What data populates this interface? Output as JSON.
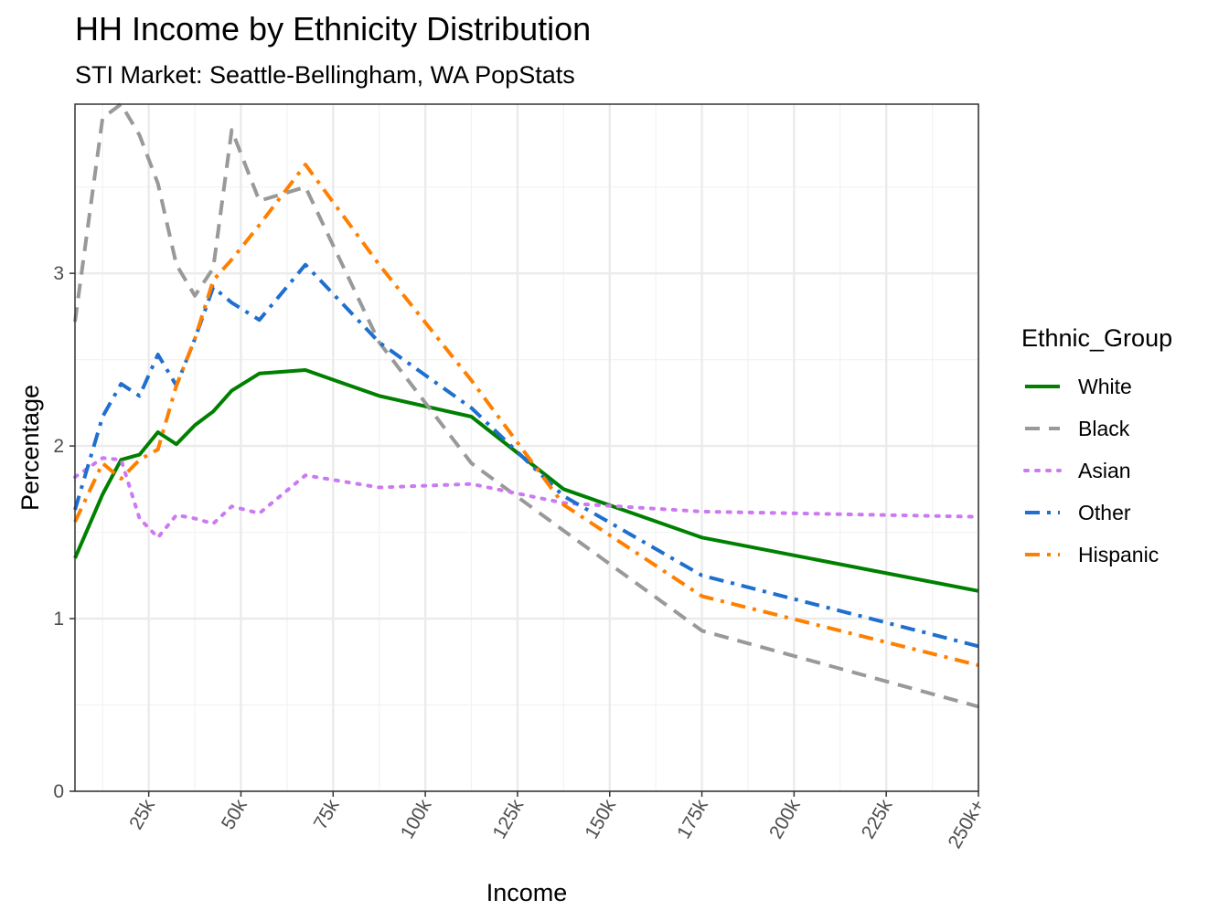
{
  "chart_data": {
    "type": "line",
    "title": "HH Income by Ethnicity Distribution",
    "subtitle": "STI Market: Seattle-Bellingham, WA PopStats",
    "xlabel": "Income",
    "ylabel": "Percentage",
    "xlim": [
      5,
      250
    ],
    "ylim": [
      0,
      3.98
    ],
    "x_ticks": [
      {
        "value": 25,
        "label": "25k"
      },
      {
        "value": 50,
        "label": "50k"
      },
      {
        "value": 75,
        "label": "75k"
      },
      {
        "value": 100,
        "label": "100k"
      },
      {
        "value": 125,
        "label": "125k"
      },
      {
        "value": 150,
        "label": "150k"
      },
      {
        "value": 175,
        "label": "175k"
      },
      {
        "value": 200,
        "label": "200k"
      },
      {
        "value": 225,
        "label": "225k"
      },
      {
        "value": 250,
        "label": "250k+"
      }
    ],
    "y_ticks": [
      {
        "value": 0,
        "label": "0"
      },
      {
        "value": 1,
        "label": "1"
      },
      {
        "value": 2,
        "label": "2"
      },
      {
        "value": 3,
        "label": "3"
      }
    ],
    "grid": true,
    "legend": {
      "title": "Ethnic_Group",
      "position": "right"
    },
    "x": [
      5,
      12.5,
      17.5,
      22.5,
      27.5,
      32.5,
      37.5,
      42.5,
      47.5,
      55,
      67.5,
      87.5,
      112.5,
      137.5,
      175,
      250
    ],
    "series": [
      {
        "name": "White",
        "color": "#008000",
        "dash": "solid",
        "values": [
          1.35,
          1.72,
          1.92,
          1.95,
          2.08,
          2.01,
          2.12,
          2.2,
          2.32,
          2.42,
          2.44,
          2.29,
          2.17,
          1.75,
          1.47,
          1.16
        ]
      },
      {
        "name": "Black",
        "color": "#999999",
        "dash": "dashed",
        "values": [
          2.72,
          3.9,
          3.98,
          3.8,
          3.52,
          3.05,
          2.87,
          3.03,
          3.83,
          3.42,
          3.5,
          2.6,
          1.9,
          1.51,
          0.93,
          0.49
        ]
      },
      {
        "name": "Asian",
        "color": "#cc79f2",
        "dash": "dotted",
        "values": [
          1.82,
          1.93,
          1.92,
          1.58,
          1.47,
          1.6,
          1.58,
          1.55,
          1.65,
          1.61,
          1.83,
          1.76,
          1.78,
          1.67,
          1.62,
          1.59
        ]
      },
      {
        "name": "Other",
        "color": "#1f6fcf",
        "dash": "dotdash",
        "values": [
          1.63,
          2.17,
          2.36,
          2.29,
          2.53,
          2.35,
          2.62,
          2.92,
          2.83,
          2.73,
          3.05,
          2.6,
          2.22,
          1.71,
          1.25,
          0.84
        ]
      },
      {
        "name": "Hispanic",
        "color": "#ff8000",
        "dash": "dotdash",
        "values": [
          1.56,
          1.9,
          1.81,
          1.92,
          1.98,
          2.35,
          2.62,
          2.96,
          3.08,
          3.28,
          3.63,
          3.05,
          2.38,
          1.66,
          1.13,
          0.73
        ]
      }
    ]
  }
}
